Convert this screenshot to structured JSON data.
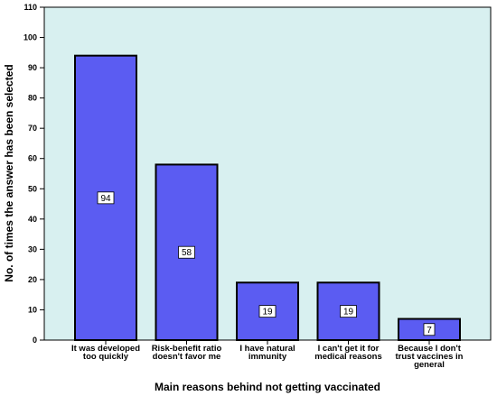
{
  "chart_data": {
    "type": "bar",
    "categories": [
      [
        "It was developed",
        "too quickly"
      ],
      [
        "Risk-benefit ratio",
        "doesn't favor me"
      ],
      [
        "I have natural",
        "immunity"
      ],
      [
        "I can't get it for",
        "medical reasons"
      ],
      [
        "Because I don't",
        "trust vaccines in",
        "general"
      ]
    ],
    "values": [
      94,
      58,
      19,
      19,
      7
    ],
    "data_labels": [
      "94",
      "58",
      "19",
      "19",
      "7"
    ],
    "xlabel": "Main reasons behind not getting vaccinated",
    "ylabel": "No. of times the answer has been selected",
    "ylim": [
      0,
      110
    ],
    "yticks": [
      0,
      10,
      20,
      30,
      40,
      50,
      60,
      70,
      80,
      90,
      100,
      110
    ],
    "grid": false,
    "colors": {
      "plot_background": "#d8f0f0",
      "bar_fill": "#5b5cf2",
      "bar_stroke": "#000000"
    }
  }
}
